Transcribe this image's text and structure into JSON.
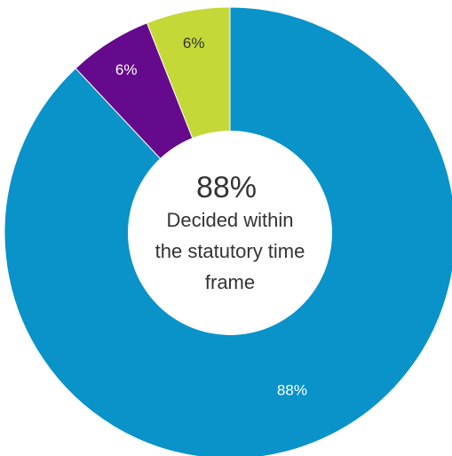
{
  "chart_data": {
    "type": "pie",
    "variant": "donut",
    "categories": [
      "Decided within the statutory time frame",
      "",
      ""
    ],
    "values": [
      88,
      6,
      6
    ],
    "slice_labels": [
      "88%",
      "6%",
      "6%"
    ],
    "colors": [
      "#0993c9",
      "#650a8c",
      "#c4d838"
    ],
    "label_colors": [
      "#ffffff",
      "#ffffff",
      "#333333"
    ],
    "center": {
      "value": "88%",
      "lines": [
        "Decided within",
        "the statutory time",
        "frame"
      ]
    }
  }
}
